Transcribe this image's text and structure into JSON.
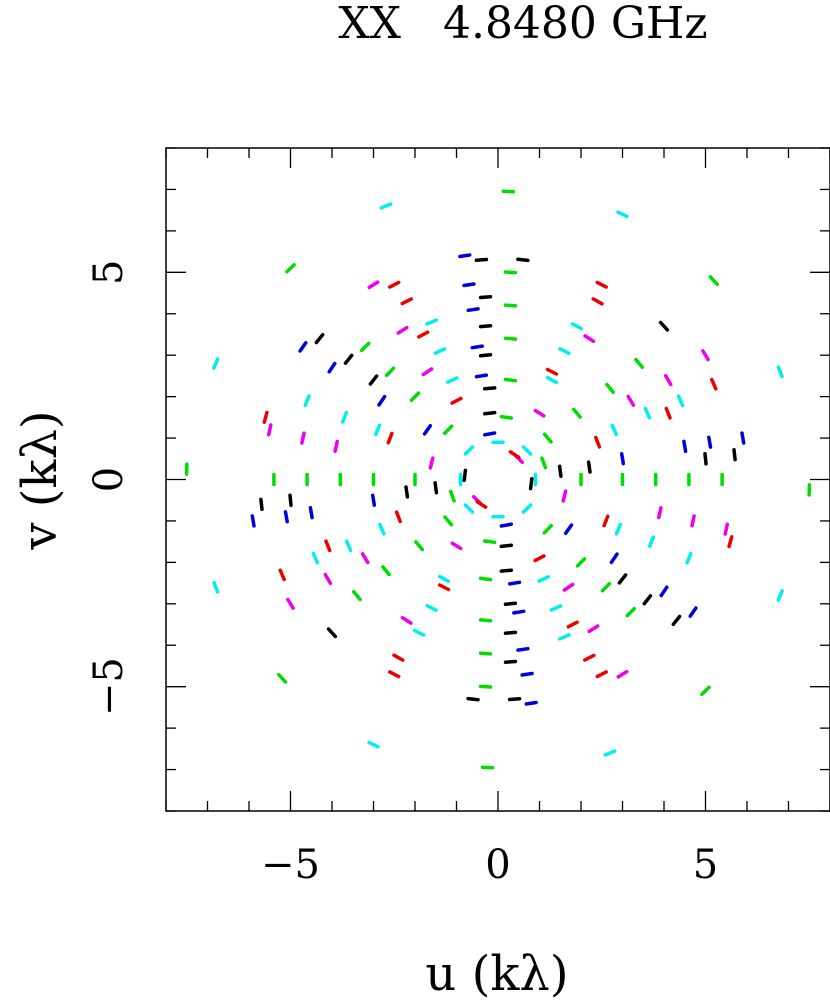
{
  "chart_data": {
    "type": "scatter",
    "title": "XX   4.8480 GHz",
    "xlabel": "u (kλ)",
    "ylabel": "v (kλ)",
    "xlim": [
      -8,
      8
    ],
    "ylim": [
      -8,
      8
    ],
    "xticks": [
      -5,
      0,
      5
    ],
    "yticks": [
      -5,
      0,
      5
    ],
    "tick_labels_x": [
      "−5",
      "0",
      "5"
    ],
    "tick_labels_y": [
      "−5",
      "0",
      "5"
    ],
    "minor_tick_step": 1,
    "grid": false,
    "legend": "none",
    "colors": [
      "#00dd00",
      "#00eeee",
      "#ee00ee",
      "#ee0000",
      "#0000dd",
      "#000000"
    ],
    "series": [
      {
        "color": "#00dd00",
        "values": [
          {
            "u": 0.25,
            "v": 6.95
          },
          {
            "u": -0.25,
            "v": -6.95
          },
          {
            "u": -5.0,
            "v": 5.1
          },
          {
            "u": 5.0,
            "v": -5.1
          },
          {
            "u": 5.2,
            "v": 4.8
          },
          {
            "u": -5.2,
            "v": -4.8
          },
          {
            "u": -7.5,
            "v": 0.25
          },
          {
            "u": 7.5,
            "v": -0.25
          },
          {
            "u": 0.3,
            "v": 5.0
          },
          {
            "u": -0.3,
            "v": -5.0
          },
          {
            "u": 0.3,
            "v": 4.2
          },
          {
            "u": -0.3,
            "v": -4.2
          },
          {
            "u": 0.3,
            "v": 3.4
          },
          {
            "u": -0.3,
            "v": -3.4
          },
          {
            "u": 5.4,
            "v": 0.0
          },
          {
            "u": -5.4,
            "v": 0.0
          },
          {
            "u": 4.6,
            "v": 0.0
          },
          {
            "u": -4.6,
            "v": 0.0
          },
          {
            "u": 3.8,
            "v": 0.0
          },
          {
            "u": -3.8,
            "v": 0.0
          },
          {
            "u": 3.0,
            "v": 0.0
          },
          {
            "u": -3.0,
            "v": 0.0
          },
          {
            "u": -3.2,
            "v": 3.2
          },
          {
            "u": 3.2,
            "v": -3.2
          },
          {
            "u": -2.6,
            "v": 2.6
          },
          {
            "u": 2.6,
            "v": -2.6
          },
          {
            "u": -2.0,
            "v": 2.0
          },
          {
            "u": 2.0,
            "v": -2.0
          },
          {
            "u": 3.4,
            "v": 2.8
          },
          {
            "u": -3.4,
            "v": -2.8
          },
          {
            "u": 2.7,
            "v": 2.2
          },
          {
            "u": -2.7,
            "v": -2.2
          },
          {
            "u": 1.9,
            "v": 1.6
          },
          {
            "u": -1.9,
            "v": -1.6
          },
          {
            "u": 1.2,
            "v": 1.0
          },
          {
            "u": -1.2,
            "v": -1.0
          },
          {
            "u": -1.2,
            "v": 1.2
          },
          {
            "u": 1.2,
            "v": -1.2
          },
          {
            "u": 0.3,
            "v": 2.4
          },
          {
            "u": -0.3,
            "v": -2.4
          },
          {
            "u": 0.2,
            "v": 1.5
          },
          {
            "u": -0.2,
            "v": -1.5
          },
          {
            "u": 2.0,
            "v": 0.0
          },
          {
            "u": -2.0,
            "v": 0.0
          },
          {
            "u": 1.1,
            "v": 0.4
          },
          {
            "u": -1.1,
            "v": -0.4
          }
        ]
      },
      {
        "color": "#00eeee",
        "values": [
          {
            "u": -2.7,
            "v": 6.6
          },
          {
            "u": 2.7,
            "v": -6.6
          },
          {
            "u": 3.0,
            "v": 6.4
          },
          {
            "u": -3.0,
            "v": -6.4
          },
          {
            "u": -6.8,
            "v": 2.8
          },
          {
            "u": 6.8,
            "v": -2.8
          },
          {
            "u": 6.8,
            "v": 2.6
          },
          {
            "u": -6.8,
            "v": -2.6
          },
          {
            "u": 1.9,
            "v": 3.7
          },
          {
            "u": -1.9,
            "v": -3.7
          },
          {
            "u": 1.6,
            "v": 3.1
          },
          {
            "u": -1.6,
            "v": -3.1
          },
          {
            "u": 1.3,
            "v": 2.4
          },
          {
            "u": -1.3,
            "v": -2.4
          },
          {
            "u": -1.6,
            "v": 3.8
          },
          {
            "u": 1.6,
            "v": -3.8
          },
          {
            "u": -1.4,
            "v": 3.1
          },
          {
            "u": 1.4,
            "v": -3.1
          },
          {
            "u": -1.1,
            "v": 2.4
          },
          {
            "u": 1.1,
            "v": -2.4
          },
          {
            "u": 4.4,
            "v": 1.9
          },
          {
            "u": -4.4,
            "v": -1.9
          },
          {
            "u": 3.6,
            "v": 1.6
          },
          {
            "u": -3.6,
            "v": -1.6
          },
          {
            "u": 2.8,
            "v": 1.2
          },
          {
            "u": -2.8,
            "v": -1.2
          },
          {
            "u": -4.6,
            "v": 1.9
          },
          {
            "u": 4.6,
            "v": -1.9
          },
          {
            "u": -3.7,
            "v": 1.5
          },
          {
            "u": 3.7,
            "v": -1.5
          },
          {
            "u": -2.9,
            "v": 1.2
          },
          {
            "u": 2.9,
            "v": -1.2
          },
          {
            "u": 0.7,
            "v": 0.7
          },
          {
            "u": -0.7,
            "v": -0.7
          },
          {
            "u": -0.7,
            "v": 0.7
          },
          {
            "u": 0.7,
            "v": -0.7
          },
          {
            "u": 0.9,
            "v": 0.0
          },
          {
            "u": -0.9,
            "v": 0.0
          },
          {
            "u": 0.0,
            "v": 0.9
          },
          {
            "u": 0.0,
            "v": -0.9
          }
        ]
      },
      {
        "color": "#ee00ee",
        "values": [
          {
            "u": -3.0,
            "v": 4.7
          },
          {
            "u": 3.0,
            "v": -4.7
          },
          {
            "u": -2.3,
            "v": 3.6
          },
          {
            "u": 2.3,
            "v": -3.6
          },
          {
            "u": -1.7,
            "v": 2.6
          },
          {
            "u": 1.7,
            "v": -2.6
          },
          {
            "u": 5.0,
            "v": 3.0
          },
          {
            "u": -5.0,
            "v": -3.0
          },
          {
            "u": 4.1,
            "v": 2.4
          },
          {
            "u": -4.1,
            "v": -2.4
          },
          {
            "u": 3.2,
            "v": 1.9
          },
          {
            "u": -3.2,
            "v": -1.9
          },
          {
            "u": -5.5,
            "v": 1.2
          },
          {
            "u": 5.5,
            "v": -1.2
          },
          {
            "u": -4.7,
            "v": 1.0
          },
          {
            "u": 4.7,
            "v": -1.0
          },
          {
            "u": -3.9,
            "v": 0.8
          },
          {
            "u": 3.9,
            "v": -0.8
          },
          {
            "u": 2.2,
            "v": 3.4
          },
          {
            "u": -2.2,
            "v": -3.4
          },
          {
            "u": 1.0,
            "v": 1.6
          },
          {
            "u": -1.0,
            "v": -1.6
          },
          {
            "u": -1.6,
            "v": 0.4
          },
          {
            "u": 1.6,
            "v": -0.4
          },
          {
            "u": 0.5,
            "v": 0.5
          },
          {
            "u": -0.5,
            "v": -0.5
          }
        ]
      },
      {
        "color": "#ee0000",
        "values": [
          {
            "u": -2.5,
            "v": 4.7
          },
          {
            "u": 2.5,
            "v": -4.7
          },
          {
            "u": 2.5,
            "v": 4.7
          },
          {
            "u": -2.5,
            "v": -4.7
          },
          {
            "u": -2.2,
            "v": 4.3
          },
          {
            "u": 2.2,
            "v": -4.3
          },
          {
            "u": 2.4,
            "v": 4.3
          },
          {
            "u": -2.4,
            "v": -4.3
          },
          {
            "u": -5.6,
            "v": 1.5
          },
          {
            "u": 5.6,
            "v": -1.5
          },
          {
            "u": 5.2,
            "v": 2.3
          },
          {
            "u": -5.2,
            "v": -2.3
          },
          {
            "u": -1.8,
            "v": 3.5
          },
          {
            "u": 1.8,
            "v": -3.5
          },
          {
            "u": 4.1,
            "v": 1.6
          },
          {
            "u": -4.1,
            "v": -1.6
          },
          {
            "u": -2.6,
            "v": 1.0
          },
          {
            "u": 2.6,
            "v": -1.0
          },
          {
            "u": 1.3,
            "v": 2.6
          },
          {
            "u": -1.3,
            "v": -2.6
          },
          {
            "u": -1.0,
            "v": 1.9
          },
          {
            "u": 1.0,
            "v": -1.9
          },
          {
            "u": 2.4,
            "v": 0.9
          },
          {
            "u": -2.4,
            "v": -0.9
          },
          {
            "u": 0.4,
            "v": 0.6
          },
          {
            "u": -0.4,
            "v": -0.6
          }
        ]
      },
      {
        "color": "#0000dd",
        "values": [
          {
            "u": -0.8,
            "v": 5.4
          },
          {
            "u": 0.8,
            "v": -5.4
          },
          {
            "u": -0.7,
            "v": 4.7
          },
          {
            "u": 0.7,
            "v": -4.7
          },
          {
            "u": -0.6,
            "v": 4.1
          },
          {
            "u": 0.6,
            "v": -4.1
          },
          {
            "u": -4.7,
            "v": 3.2
          },
          {
            "u": 4.7,
            "v": -3.2
          },
          {
            "u": -4.0,
            "v": 2.7
          },
          {
            "u": 4.0,
            "v": -2.7
          },
          {
            "u": -2.8,
            "v": 1.9
          },
          {
            "u": 2.8,
            "v": -1.9
          },
          {
            "u": -5.9,
            "v": -1.0
          },
          {
            "u": 5.9,
            "v": 1.0
          },
          {
            "u": -5.1,
            "v": -0.9
          },
          {
            "u": 5.1,
            "v": 0.9
          },
          {
            "u": 4.5,
            "v": 0.8
          },
          {
            "u": -4.5,
            "v": -0.8
          },
          {
            "u": -0.5,
            "v": 3.2
          },
          {
            "u": 0.5,
            "v": -3.2
          },
          {
            "u": -0.4,
            "v": 2.5
          },
          {
            "u": 0.4,
            "v": -2.5
          },
          {
            "u": -1.7,
            "v": 1.2
          },
          {
            "u": 1.7,
            "v": -1.2
          },
          {
            "u": 3.0,
            "v": 0.5
          },
          {
            "u": -3.0,
            "v": -0.5
          },
          {
            "u": -0.2,
            "v": 1.1
          },
          {
            "u": 0.2,
            "v": -1.1
          }
        ]
      },
      {
        "color": "#000000",
        "values": [
          {
            "u": -0.4,
            "v": 5.3
          },
          {
            "u": 0.4,
            "v": -5.3
          },
          {
            "u": 0.6,
            "v": 5.3
          },
          {
            "u": -0.6,
            "v": -5.3
          },
          {
            "u": -0.3,
            "v": 4.4
          },
          {
            "u": 0.3,
            "v": -4.4
          },
          {
            "u": -0.3,
            "v": 3.7
          },
          {
            "u": 0.3,
            "v": -3.7
          },
          {
            "u": -0.3,
            "v": 3.0
          },
          {
            "u": 0.3,
            "v": -3.0
          },
          {
            "u": -0.2,
            "v": 2.2
          },
          {
            "u": 0.2,
            "v": -2.2
          },
          {
            "u": -0.2,
            "v": 1.6
          },
          {
            "u": 0.2,
            "v": -1.6
          },
          {
            "u": -4.3,
            "v": 3.4
          },
          {
            "u": 4.3,
            "v": -3.4
          },
          {
            "u": -3.6,
            "v": 2.9
          },
          {
            "u": 3.6,
            "v": -2.9
          },
          {
            "u": -3.0,
            "v": 2.4
          },
          {
            "u": 3.0,
            "v": -2.4
          },
          {
            "u": -5.7,
            "v": -0.6
          },
          {
            "u": 5.7,
            "v": 0.6
          },
          {
            "u": -5.0,
            "v": -0.5
          },
          {
            "u": 5.0,
            "v": 0.5
          },
          {
            "u": -2.2,
            "v": -0.3
          },
          {
            "u": 2.2,
            "v": 0.3
          },
          {
            "u": -1.5,
            "v": -0.2
          },
          {
            "u": 1.5,
            "v": 0.2
          },
          {
            "u": 4.0,
            "v": 3.7
          },
          {
            "u": -4.0,
            "v": -3.7
          },
          {
            "u": -0.8,
            "v": 0.1
          },
          {
            "u": 0.8,
            "v": -0.1
          }
        ]
      }
    ]
  }
}
